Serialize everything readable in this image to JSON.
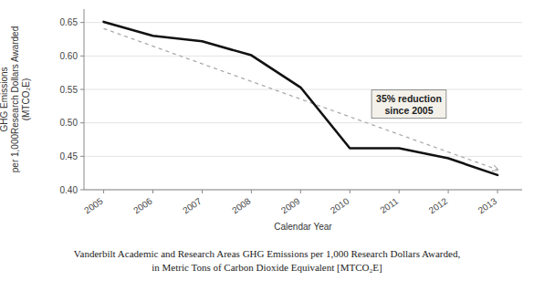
{
  "chart_data": {
    "type": "line",
    "x": [
      2005,
      2006,
      2007,
      2008,
      2009,
      2010,
      2011,
      2012,
      2013
    ],
    "series": [
      {
        "values": [
          0.651,
          0.63,
          0.622,
          0.601,
          0.553,
          0.462,
          0.462,
          0.447,
          0.422
        ],
        "color": "#111111",
        "line_style": "solid"
      },
      {
        "x": [
          2005,
          2013
        ],
        "values": [
          0.641,
          0.43
        ],
        "color": "#aaaaaa",
        "line_style": "dashed"
      }
    ],
    "xlim": [
      2004.6,
      2013.5
    ],
    "xticks": [
      2005,
      2006,
      2007,
      2008,
      2009,
      2010,
      2011,
      2012,
      2013
    ],
    "ylim": [
      0.4,
      0.67
    ],
    "yticks": [
      {
        "value": 0.4,
        "label": "0.40"
      },
      {
        "value": 0.45,
        "label": "0.45"
      },
      {
        "value": 0.5,
        "label": "0.50"
      },
      {
        "value": 0.55,
        "label": "0.55"
      },
      {
        "value": 0.6,
        "label": "0.60"
      },
      {
        "value": 0.65,
        "label": "0.65"
      }
    ],
    "grid": true,
    "x_label": "Calendar Year",
    "y_label": "GHG Emissions\nper 1,000Research Dollars Awarded\n(MTCO₂E)",
    "annotations": [
      {
        "text": "35% reduction\nsince 2005",
        "x": 2011.2,
        "y": 0.528
      }
    ],
    "caption": [
      "Vanderbilt Academic and Research Areas GHG Emissions per 1,000 Research Dollars Awarded,",
      "in Metric Tons of Carbon Dioxide Equivalent [MTCO₂E]"
    ]
  }
}
